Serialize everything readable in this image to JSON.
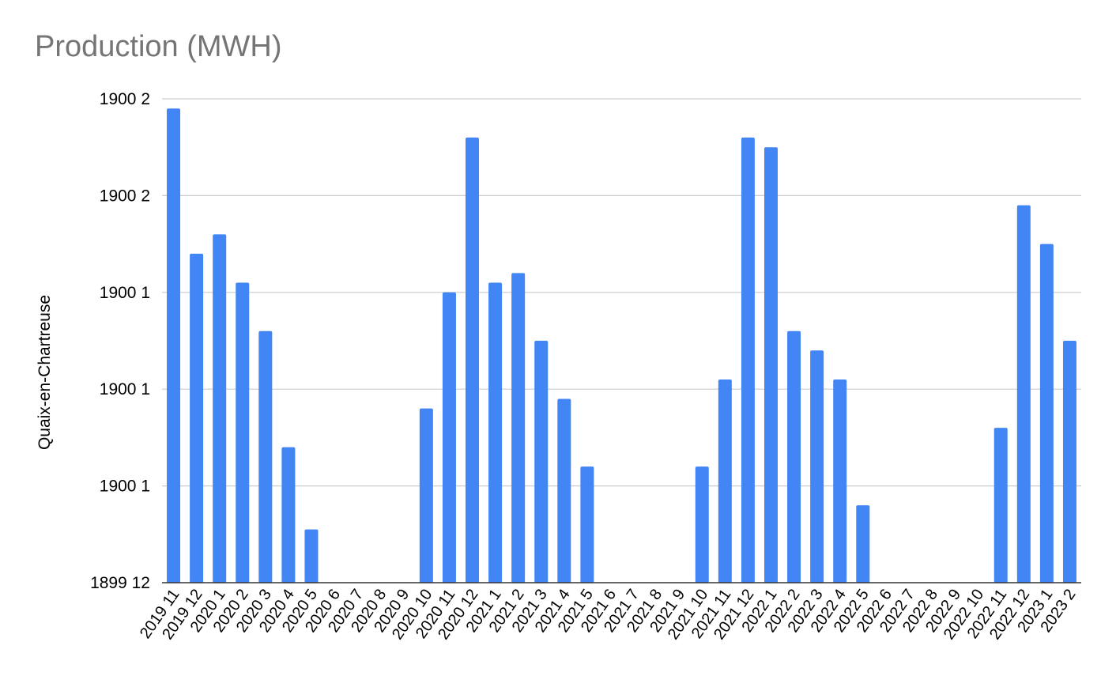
{
  "chart_data": {
    "type": "bar",
    "title": "Production (MWH)",
    "ylabel": "Quaix-en-Chartreuse",
    "xlabel": "",
    "bar_color": "#4285f4",
    "grid": true,
    "y_tick_labels": [
      "1899 12",
      "1900 1",
      "1900 1",
      "1900 1",
      "1900 2",
      "1900 2"
    ],
    "ylim": [
      0,
      50
    ],
    "categories": [
      "2019 11",
      "2019 12",
      "2020 1",
      "2020 2",
      "2020 3",
      "2020 4",
      "2020 5",
      "2020 6",
      "2020 7",
      "2020 8",
      "2020 9",
      "2020 10",
      "2020 11",
      "2020 12",
      "2021 1",
      "2021 2",
      "2021 3",
      "2021 4",
      "2021 5",
      "2021 6",
      "2021 7",
      "2021 8",
      "2021 9",
      "2021 10",
      "2021 11",
      "2021 12",
      "2022 1",
      "2022 2",
      "2022 3",
      "2022 4",
      "2022 5",
      "2022 6",
      "2022 7",
      "2022 8",
      "2022 9",
      "2022 10",
      "2022 11",
      "2022 12",
      "2023 1",
      "2023 2"
    ],
    "values": [
      49,
      34,
      36,
      31,
      26,
      14,
      5.5,
      0,
      0,
      0,
      0,
      18,
      30,
      46,
      31,
      32,
      25,
      19,
      12,
      0,
      0,
      0,
      0,
      12,
      21,
      46,
      45,
      26,
      24,
      21,
      8,
      0,
      0,
      0,
      0,
      0,
      16,
      39,
      35,
      25
    ]
  }
}
